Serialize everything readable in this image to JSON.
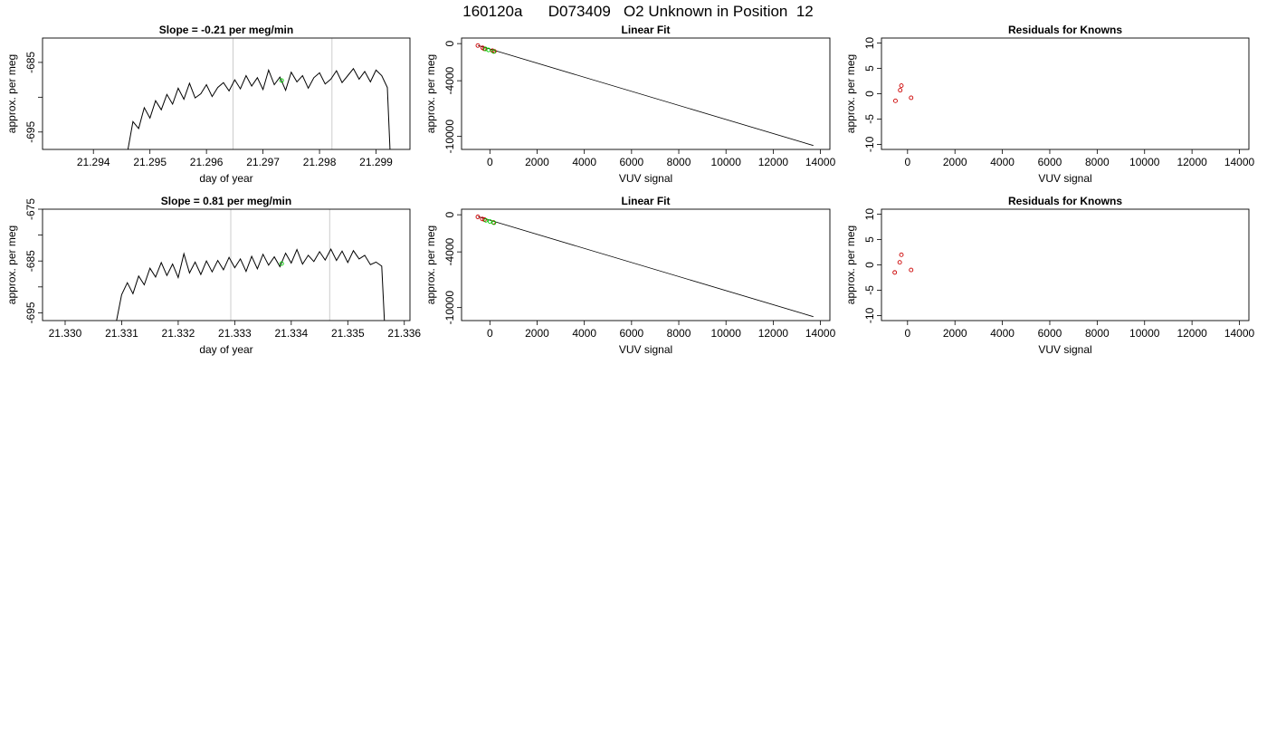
{
  "page": {
    "title": "160120a      D073409   O2 Unknown in Position  12"
  },
  "chart_data": [
    {
      "id": "ts1",
      "type": "line",
      "title": "Slope =  -0.21  per meg/min",
      "xlabel": "day of year",
      "ylabel": "approx. per meg",
      "xlim": [
        21.2931,
        21.2996
      ],
      "ylim": [
        -697.5,
        -681.5
      ],
      "xticks": [
        21.294,
        21.295,
        21.296,
        21.297,
        21.298,
        21.299
      ],
      "xtick_labels": [
        "21.294",
        "21.295",
        "21.296",
        "21.297",
        "21.298",
        "21.299"
      ],
      "yticks": [
        -695,
        -690,
        -685
      ],
      "ytick_labels": [
        "-695",
        "",
        "-685"
      ],
      "vlines": [
        21.29647,
        21.29822
      ],
      "series": [
        {
          "color": "#000000",
          "x": [
            21.2946,
            21.2947,
            21.2948,
            21.2949,
            21.295,
            21.2951,
            21.2952,
            21.2953,
            21.2954,
            21.2955,
            21.2956,
            21.2957,
            21.2958,
            21.2959,
            21.296,
            21.2961,
            21.2962,
            21.2963,
            21.2964,
            21.2965,
            21.2966,
            21.2967,
            21.2968,
            21.2969,
            21.297,
            21.2971,
            21.2972,
            21.2973,
            21.2974,
            21.2975,
            21.2976,
            21.2977,
            21.2978,
            21.2979,
            21.298,
            21.2981,
            21.2982,
            21.2983,
            21.2984,
            21.2985,
            21.2986,
            21.2987,
            21.2988,
            21.2989,
            21.299,
            21.2991,
            21.2992,
            21.29925
          ],
          "y": [
            -698.0,
            -693.5,
            -694.5,
            -691.5,
            -693.0,
            -690.5,
            -691.8,
            -689.6,
            -691.0,
            -688.7,
            -690.3,
            -688.0,
            -690.1,
            -689.5,
            -688.2,
            -689.9,
            -688.6,
            -687.9,
            -689.1,
            -687.5,
            -688.8,
            -686.9,
            -688.4,
            -687.2,
            -688.9,
            -686.1,
            -688.2,
            -687.1,
            -689.0,
            -686.4,
            -687.8,
            -686.9,
            -688.7,
            -687.2,
            -686.5,
            -688.1,
            -687.4,
            -686.2,
            -687.9,
            -686.9,
            -685.9,
            -687.4,
            -686.3,
            -687.8,
            -686.1,
            -686.9,
            -688.6,
            -698.0
          ]
        },
        {
          "color": "#00cc00",
          "marker": "circle",
          "x": [
            21.29733
          ],
          "y": [
            -687.6
          ]
        }
      ]
    },
    {
      "id": "fit1",
      "type": "scatter",
      "title": "Linear Fit",
      "xlabel": "VUV signal",
      "ylabel": "approx. per meg",
      "xlim": [
        -1200,
        14400
      ],
      "ylim": [
        -11400,
        600
      ],
      "xticks": [
        0,
        2000,
        4000,
        6000,
        8000,
        10000,
        12000,
        14000
      ],
      "xtick_labels": [
        "0",
        "2000",
        "4000",
        "6000",
        "8000",
        "10000",
        "12000",
        "14000"
      ],
      "yticks": [
        0,
        -4000,
        -10000
      ],
      "ytick_labels": [
        "0",
        "-4000",
        "-10000"
      ],
      "fit_line": {
        "x": [
          -500,
          13700
        ],
        "y": [
          -210,
          -10980
        ]
      },
      "series": [
        {
          "color": "#cc0000",
          "marker": "circle",
          "x": [
            -510,
            -310,
            -240,
            110,
            190
          ],
          "y": [
            -210,
            -450,
            -560,
            -760,
            -830
          ]
        },
        {
          "color": "#00cc00",
          "marker": "circle",
          "x": [
            -190,
            -60,
            160
          ],
          "y": [
            -570,
            -680,
            -850
          ]
        }
      ]
    },
    {
      "id": "res1",
      "type": "scatter",
      "title": "Residuals for Knowns",
      "xlabel": "VUV signal",
      "ylabel": "approx. per meg",
      "xlim": [
        -1100,
        14400
      ],
      "ylim": [
        -11,
        11
      ],
      "xticks": [
        0,
        2000,
        4000,
        6000,
        8000,
        10000,
        12000,
        14000
      ],
      "xtick_labels": [
        "0",
        "2000",
        "4000",
        "6000",
        "8000",
        "10000",
        "12000",
        "14000"
      ],
      "yticks": [
        -10,
        -5,
        0,
        5,
        10
      ],
      "ytick_labels": [
        "-10",
        "-5",
        "0",
        "5",
        "10"
      ],
      "series": [
        {
          "color": "#cc0000",
          "marker": "circle",
          "x": [
            -510,
            -310,
            -260,
            150
          ],
          "y": [
            -1.4,
            0.7,
            1.6,
            -0.8
          ]
        }
      ]
    },
    {
      "id": "ts2",
      "type": "line",
      "title": "Slope =  0.81  per meg/min",
      "xlabel": "day of year",
      "ylabel": "approx. per meg",
      "xlim": [
        21.3296,
        21.3361
      ],
      "ylim": [
        -696.5,
        -675.0
      ],
      "xticks": [
        21.33,
        21.331,
        21.332,
        21.333,
        21.334,
        21.335,
        21.336
      ],
      "xtick_labels": [
        "21.330",
        "21.331",
        "21.332",
        "21.333",
        "21.334",
        "21.335",
        "21.336"
      ],
      "yticks": [
        -695,
        -690,
        -685,
        -680,
        -675
      ],
      "ytick_labels": [
        "-695",
        "",
        "-685",
        "",
        "-675"
      ],
      "vlines": [
        21.33293,
        21.33468
      ],
      "series": [
        {
          "color": "#000000",
          "x": [
            21.3309,
            21.331,
            21.3311,
            21.3312,
            21.3313,
            21.3314,
            21.3315,
            21.3316,
            21.3317,
            21.3318,
            21.3319,
            21.332,
            21.3321,
            21.3322,
            21.3323,
            21.3324,
            21.3325,
            21.3326,
            21.3327,
            21.3328,
            21.3329,
            21.333,
            21.3331,
            21.3332,
            21.3333,
            21.3334,
            21.3335,
            21.3336,
            21.3337,
            21.3338,
            21.3339,
            21.334,
            21.3341,
            21.3342,
            21.3343,
            21.3344,
            21.3345,
            21.3346,
            21.3347,
            21.3348,
            21.3349,
            21.335,
            21.3351,
            21.3352,
            21.3353,
            21.3354,
            21.3355,
            21.3356,
            21.33565
          ],
          "y": [
            -697.0,
            -691.5,
            -689.2,
            -691.3,
            -687.9,
            -689.6,
            -686.4,
            -688.1,
            -685.3,
            -687.8,
            -685.6,
            -688.2,
            -683.6,
            -687.3,
            -685.2,
            -687.6,
            -685.0,
            -687.1,
            -684.9,
            -686.7,
            -684.3,
            -686.3,
            -684.6,
            -687.0,
            -684.1,
            -686.5,
            -683.7,
            -685.8,
            -684.2,
            -686.1,
            -683.5,
            -685.4,
            -682.8,
            -685.6,
            -683.9,
            -685.1,
            -683.2,
            -684.8,
            -682.7,
            -684.9,
            -683.1,
            -685.3,
            -683.0,
            -684.6,
            -683.9,
            -685.7,
            -685.2,
            -686.0,
            -697.0
          ]
        },
        {
          "color": "#00cc00",
          "marker": "circle",
          "x": [
            21.33383
          ],
          "y": [
            -685.5
          ]
        }
      ]
    },
    {
      "id": "fit2",
      "type": "scatter",
      "title": "Linear Fit",
      "xlabel": "VUV signal",
      "ylabel": "approx. per meg",
      "xlim": [
        -1200,
        14400
      ],
      "ylim": [
        -11400,
        600
      ],
      "xticks": [
        0,
        2000,
        4000,
        6000,
        8000,
        10000,
        12000,
        14000
      ],
      "xtick_labels": [
        "0",
        "2000",
        "4000",
        "6000",
        "8000",
        "10000",
        "12000",
        "14000"
      ],
      "yticks": [
        0,
        -4000,
        -10000
      ],
      "ytick_labels": [
        "0",
        "-4000",
        "-10000"
      ],
      "fit_line": {
        "x": [
          -500,
          13700
        ],
        "y": [
          -210,
          -10980
        ]
      },
      "series": [
        {
          "color": "#cc0000",
          "marker": "circle",
          "x": [
            -510,
            -320,
            -230,
            150
          ],
          "y": [
            -230,
            -450,
            -520,
            -820
          ]
        },
        {
          "color": "#00cc00",
          "marker": "circle",
          "x": [
            -170,
            0,
            170
          ],
          "y": [
            -600,
            -720,
            -860
          ]
        }
      ]
    },
    {
      "id": "res2",
      "type": "scatter",
      "title": "Residuals for Knowns",
      "xlabel": "VUV signal",
      "ylabel": "approx. per meg",
      "xlim": [
        -1100,
        14400
      ],
      "ylim": [
        -11,
        11
      ],
      "xticks": [
        0,
        2000,
        4000,
        6000,
        8000,
        10000,
        12000,
        14000
      ],
      "xtick_labels": [
        "0",
        "2000",
        "4000",
        "6000",
        "8000",
        "10000",
        "12000",
        "14000"
      ],
      "yticks": [
        -10,
        -5,
        0,
        5,
        10
      ],
      "ytick_labels": [
        "-10",
        "-5",
        "0",
        "5",
        "10"
      ],
      "series": [
        {
          "color": "#cc0000",
          "marker": "circle",
          "x": [
            -540,
            -330,
            -260,
            150
          ],
          "y": [
            -1.5,
            0.5,
            2.0,
            -1.0
          ]
        }
      ]
    }
  ]
}
